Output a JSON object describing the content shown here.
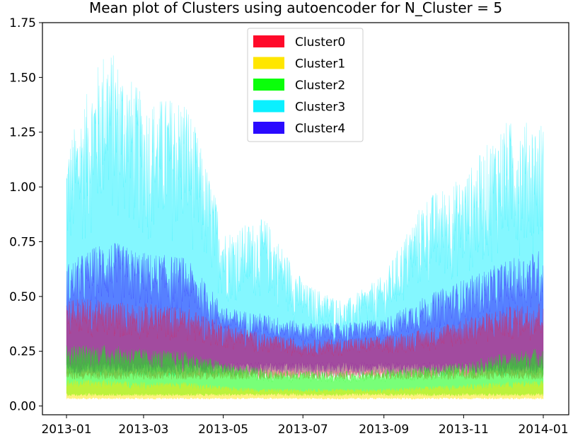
{
  "chart_data": {
    "type": "area",
    "title": "Mean plot of Clusters using autoencoder for N_Cluster = 5",
    "xlabel": "",
    "ylabel": "",
    "xlim": [
      "2013-01-01",
      "2014-01-01"
    ],
    "ylim": [
      -0.04,
      1.75
    ],
    "x_ticks": [
      "2013-01",
      "2013-03",
      "2013-05",
      "2013-07",
      "2013-09",
      "2013-11",
      "2014-01"
    ],
    "y_ticks": [
      "0.00",
      "0.25",
      "0.50",
      "0.75",
      "1.00",
      "1.25",
      "1.50",
      "1.75"
    ],
    "grid": false,
    "legend_position": "top-center",
    "series": [
      {
        "name": "Cluster0",
        "color": "#ff0a2a",
        "approx_band_lower": 0.16,
        "monthly_envelope_upper": [
          0.5,
          0.48,
          0.47,
          0.45,
          0.38,
          0.33,
          0.3,
          0.31,
          0.32,
          0.35,
          0.4,
          0.45,
          0.48
        ]
      },
      {
        "name": "Cluster1",
        "color": "#ffe600",
        "approx_band_lower": 0.04,
        "monthly_envelope_upper": [
          0.12,
          0.12,
          0.11,
          0.11,
          0.09,
          0.08,
          0.08,
          0.08,
          0.08,
          0.09,
          0.1,
          0.11,
          0.12
        ]
      },
      {
        "name": "Cluster2",
        "color": "#0aff0a",
        "approx_band_lower": 0.06,
        "monthly_envelope_upper": [
          0.28,
          0.28,
          0.26,
          0.25,
          0.2,
          0.17,
          0.16,
          0.16,
          0.17,
          0.18,
          0.2,
          0.24,
          0.27
        ]
      },
      {
        "name": "Cluster3",
        "color": "#0af0ff",
        "approx_band_lower": 0.18,
        "monthly_envelope_upper": [
          1.18,
          1.66,
          1.4,
          1.42,
          0.8,
          0.86,
          0.56,
          0.48,
          0.6,
          0.95,
          1.05,
          1.3,
          1.3
        ]
      },
      {
        "name": "Cluster4",
        "color": "#2a0aff",
        "approx_band_lower": 0.2,
        "monthly_envelope_upper": [
          0.65,
          0.76,
          0.7,
          0.68,
          0.45,
          0.42,
          0.38,
          0.38,
          0.4,
          0.5,
          0.58,
          0.66,
          0.72
        ]
      }
    ]
  }
}
